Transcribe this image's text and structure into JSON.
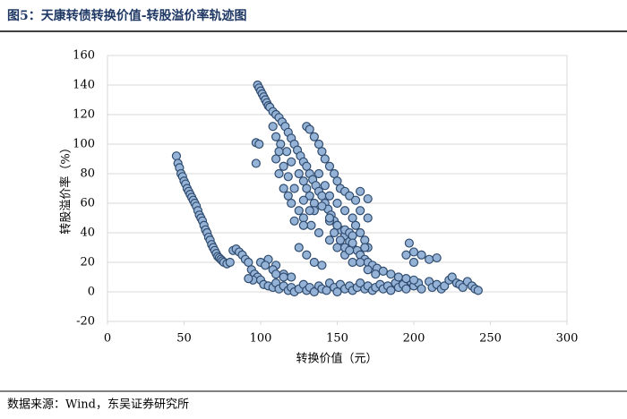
{
  "header": {
    "title": "图5：天康转债转换价值-转股溢价率轨迹图"
  },
  "chart_data": {
    "type": "scatter",
    "x_label": "转换价值（元）",
    "y_label": "转股溢价率（%）",
    "xlim": [
      0,
      300
    ],
    "xticks": [
      0,
      50,
      100,
      150,
      200,
      250,
      300
    ],
    "ylim": [
      -20,
      160
    ],
    "yticks": [
      -20,
      0,
      20,
      40,
      60,
      80,
      100,
      120,
      140,
      160
    ],
    "grid": true,
    "color": "#95b3d7",
    "x": [
      45,
      46,
      47,
      48,
      49,
      50,
      51,
      52,
      53,
      54,
      55,
      56,
      57,
      58,
      59,
      60,
      61,
      62,
      63,
      64,
      65,
      66,
      67,
      68,
      69,
      70,
      71,
      72,
      73,
      74,
      75,
      76,
      78,
      80,
      82,
      84,
      86,
      88,
      90,
      92,
      94,
      96,
      98,
      95,
      92,
      100,
      102,
      105,
      108,
      110,
      112,
      115,
      118,
      120,
      122,
      125,
      128,
      130,
      132,
      135,
      138,
      140,
      143,
      145,
      148,
      150,
      152,
      155,
      158,
      160,
      163,
      165,
      168,
      170,
      173,
      175,
      178,
      180,
      183,
      185,
      188,
      190,
      193,
      195,
      198,
      200,
      203,
      205,
      210,
      212,
      215,
      218,
      220,
      223,
      225,
      228,
      230,
      232,
      235,
      238,
      240,
      242,
      98,
      99,
      100,
      101,
      102,
      103,
      104,
      105,
      106,
      108,
      110,
      112,
      114,
      116,
      118,
      120,
      122,
      124,
      126,
      128,
      130,
      132,
      134,
      136,
      138,
      140,
      142,
      144,
      146,
      148,
      150,
      152,
      155,
      158,
      160,
      163,
      165,
      168,
      170,
      173,
      176,
      180,
      185,
      190,
      195,
      200,
      97,
      99,
      97,
      110,
      112,
      115,
      118,
      120,
      113,
      117,
      120,
      125,
      128,
      130,
      132,
      135,
      130,
      132,
      135,
      138,
      140,
      142,
      145,
      148,
      150,
      152,
      155,
      158,
      162,
      165,
      170,
      125,
      128,
      133,
      138,
      145,
      150,
      155,
      160,
      145,
      150,
      155,
      158,
      160,
      162,
      165,
      168,
      170,
      135,
      140,
      125,
      130,
      105,
      110,
      115,
      120,
      100,
      103,
      108,
      110,
      115,
      122,
      128,
      135,
      140,
      145,
      148,
      152,
      155,
      158,
      160,
      168,
      165,
      170,
      175,
      197,
      200,
      195,
      205,
      200,
      210,
      215,
      160,
      165,
      170,
      150,
      155,
      142,
      138,
      145,
      132,
      128,
      122,
      118,
      115,
      112,
      110,
      108
    ],
    "values": [
      92,
      87,
      84,
      80,
      78,
      75,
      73,
      70,
      68,
      66,
      64,
      62,
      60,
      58,
      55,
      52,
      50,
      48,
      45,
      42,
      40,
      37,
      35,
      32,
      30,
      28,
      26,
      24,
      23,
      22,
      21,
      20,
      19,
      20,
      28,
      29,
      27,
      25,
      22,
      20,
      15,
      12,
      10,
      8,
      9,
      8,
      5,
      4,
      3,
      6,
      2,
      4,
      1,
      3,
      0,
      2,
      5,
      1,
      3,
      0,
      4,
      2,
      1,
      6,
      3,
      0,
      5,
      2,
      4,
      1,
      3,
      6,
      2,
      4,
      1,
      3,
      5,
      2,
      4,
      1,
      6,
      3,
      5,
      2,
      7,
      4,
      6,
      2,
      7,
      3,
      5,
      2,
      4,
      8,
      10,
      6,
      5,
      3,
      7,
      4,
      2,
      1,
      140,
      138,
      136,
      134,
      132,
      130,
      128,
      126,
      125,
      122,
      120,
      118,
      115,
      112,
      108,
      104,
      100,
      96,
      92,
      88,
      85,
      80,
      76,
      72,
      68,
      65,
      60,
      56,
      52,
      48,
      45,
      42,
      38,
      34,
      30,
      28,
      25,
      22,
      20,
      18,
      16,
      14,
      12,
      10,
      9,
      8,
      101,
      100,
      87,
      90,
      80,
      70,
      65,
      60,
      100,
      95,
      88,
      80,
      75,
      70,
      65,
      60,
      112,
      110,
      105,
      100,
      95,
      90,
      85,
      80,
      75,
      70,
      68,
      65,
      62,
      68,
      63,
      55,
      50,
      45,
      40,
      35,
      30,
      25,
      20,
      48,
      45,
      42,
      40,
      38,
      45,
      40,
      35,
      30,
      20,
      18,
      30,
      25,
      22,
      18,
      12,
      10,
      20,
      18,
      15,
      12,
      10,
      48,
      45,
      55,
      58,
      50,
      40,
      35,
      30,
      28,
      33,
      30,
      20,
      15,
      12,
      33,
      27,
      25,
      25,
      20,
      22,
      23,
      50,
      55,
      50,
      60,
      55,
      72,
      80,
      65,
      55,
      62,
      70,
      78,
      85,
      95,
      105,
      112
    ]
  },
  "footer": {
    "source": "数据来源：Wind，东吴证券研究所"
  }
}
